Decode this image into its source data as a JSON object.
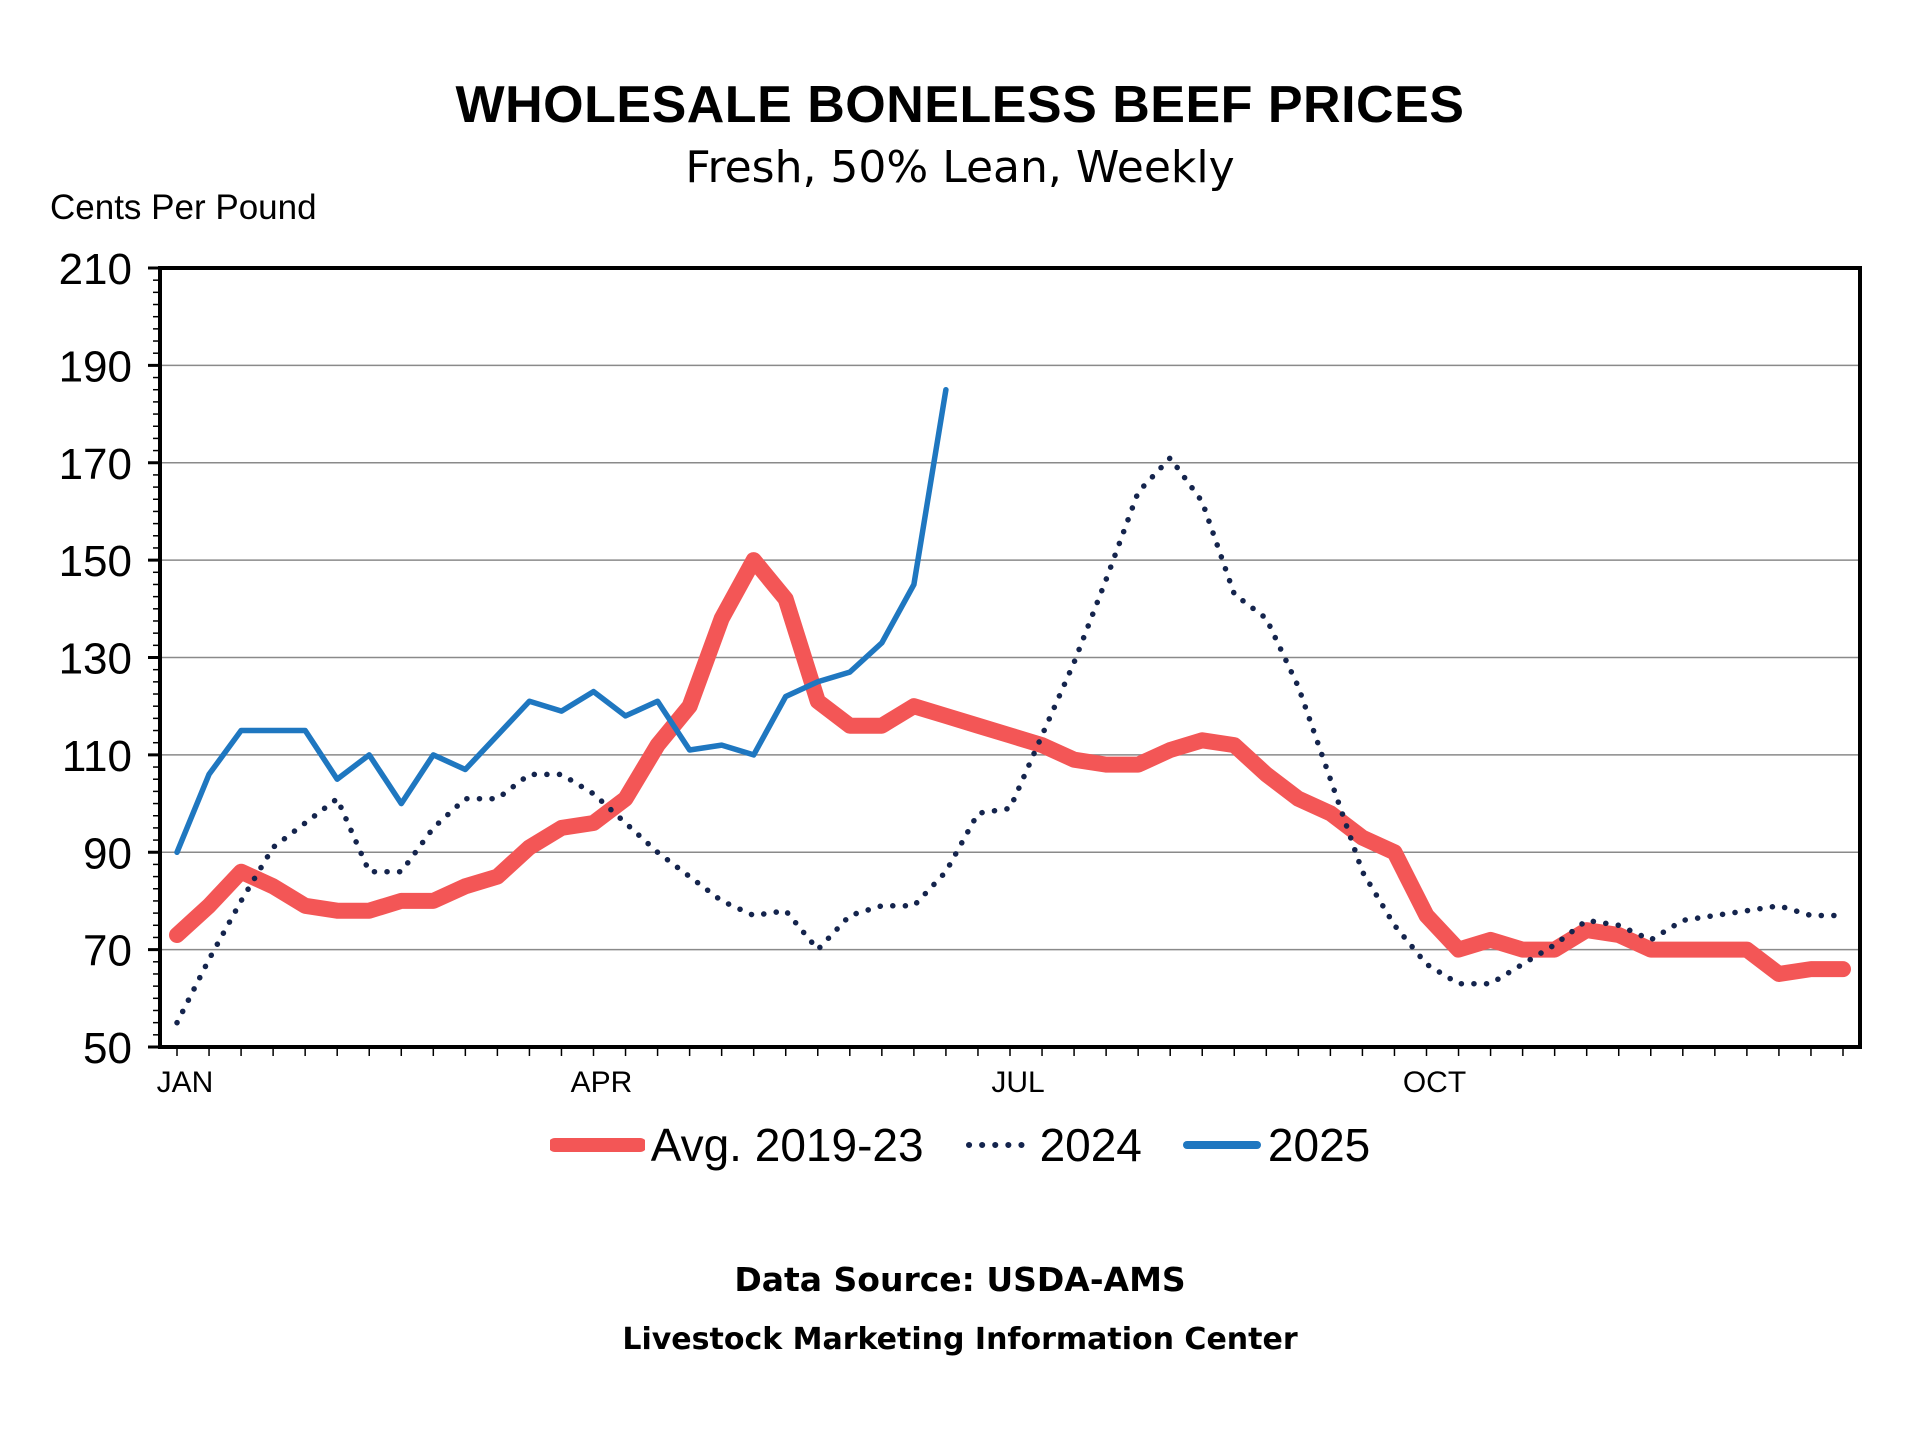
{
  "header": {
    "title": "WHOLESALE BONELESS BEEF PRICES",
    "subtitle": "Fresh, 50% Lean, Weekly",
    "y_axis_label": "Cents Per Pound"
  },
  "footer": {
    "source": "Data Source:  USDA-AMS",
    "center": "Livestock Marketing Information Center"
  },
  "colors": {
    "avg": "#f35656",
    "y2024": "#14244d",
    "y2025": "#1f77c0",
    "grid": "#8a8a8a",
    "frame": "#000000"
  },
  "chart_data": {
    "type": "line",
    "title": "WHOLESALE BONELESS BEEF PRICES",
    "subtitle": "Fresh, 50% Lean, Weekly",
    "xlabel": "",
    "ylabel": "Cents Per Pound",
    "ylim": [
      50,
      210
    ],
    "yticks": [
      50,
      70,
      90,
      110,
      130,
      150,
      170,
      190,
      210
    ],
    "xlim": [
      1,
      53
    ],
    "x_ticks": [
      {
        "label": "JAN",
        "week": 1
      },
      {
        "label": "APR",
        "week": 14
      },
      {
        "label": "JUL",
        "week": 27
      },
      {
        "label": "OCT",
        "week": 40
      }
    ],
    "grid": true,
    "legend_position": "bottom",
    "series": [
      {
        "name": "Avg. 2019-23",
        "style": "thick-solid",
        "x": [
          1,
          2,
          3,
          4,
          5,
          6,
          7,
          8,
          9,
          10,
          11,
          12,
          13,
          14,
          15,
          16,
          17,
          18,
          19,
          20,
          21,
          22,
          23,
          24,
          25,
          26,
          27,
          28,
          29,
          30,
          31,
          32,
          33,
          34,
          35,
          36,
          37,
          38,
          39,
          40,
          41,
          42,
          43,
          44,
          45,
          46,
          47,
          48,
          49,
          50,
          51,
          52,
          53
        ],
        "values": [
          73,
          79,
          86,
          83,
          79,
          78,
          78,
          80,
          80,
          83,
          85,
          91,
          95,
          96,
          101,
          112,
          120,
          138,
          150,
          142,
          121,
          116,
          116,
          120,
          118,
          116,
          114,
          112,
          109,
          108,
          108,
          111,
          113,
          112,
          106,
          101,
          98,
          93,
          90,
          77,
          70,
          72,
          70,
          70,
          74,
          73,
          70,
          70,
          70,
          70,
          65,
          66,
          66
        ]
      },
      {
        "name": "2024",
        "style": "dotted",
        "x": [
          1,
          2,
          3,
          4,
          5,
          6,
          7,
          8,
          9,
          10,
          11,
          12,
          13,
          14,
          15,
          16,
          17,
          18,
          19,
          20,
          21,
          22,
          23,
          24,
          25,
          26,
          27,
          28,
          29,
          30,
          31,
          32,
          33,
          34,
          35,
          36,
          37,
          38,
          39,
          40,
          41,
          42,
          43,
          44,
          45,
          46,
          47,
          48,
          49,
          50,
          51,
          52,
          53
        ],
        "values": [
          55,
          68,
          80,
          91,
          96,
          101,
          86,
          86,
          95,
          101,
          101,
          106,
          106,
          102,
          96,
          90,
          85,
          80,
          77,
          78,
          70,
          77,
          79,
          79,
          86,
          98,
          99,
          114,
          129,
          146,
          164,
          171,
          162,
          143,
          138,
          124,
          105,
          86,
          75,
          67,
          63,
          63,
          67,
          71,
          76,
          75,
          72,
          76,
          77,
          78,
          79,
          77,
          77
        ]
      },
      {
        "name": "2025",
        "style": "solid",
        "x": [
          1,
          2,
          3,
          4,
          5,
          6,
          7,
          8,
          9,
          10,
          11,
          12,
          13,
          14,
          15,
          16,
          17,
          18,
          19,
          20,
          21,
          22,
          23,
          24,
          25
        ],
        "values": [
          90,
          106,
          115,
          115,
          115,
          105,
          110,
          100,
          110,
          107,
          114,
          121,
          119,
          123,
          118,
          121,
          111,
          112,
          110,
          122,
          125,
          127,
          133,
          145,
          185
        ]
      }
    ]
  }
}
